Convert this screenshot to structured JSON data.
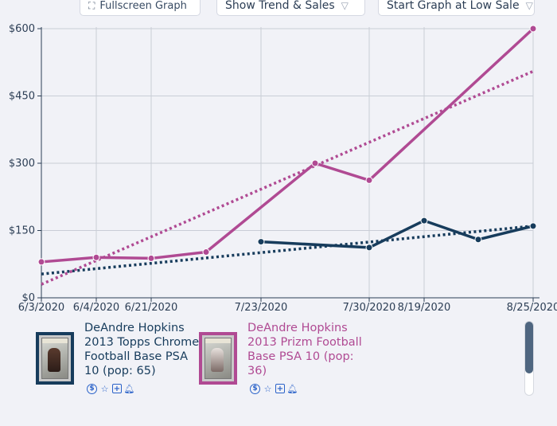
{
  "toolbar": {
    "fullscreen_label": "Fullscreen Graph",
    "trend_label": "Show Trend & Sales",
    "start_label": "Start Graph at Low Sale"
  },
  "colors": {
    "series_1": "#173c5c",
    "series_2": "#b04a93",
    "grid": "#c9cdd6"
  },
  "chart_data": {
    "type": "line",
    "title": "",
    "xlabel": "",
    "ylabel": "",
    "ylim": [
      0,
      600
    ],
    "yticks": [
      0,
      150,
      300,
      450,
      600
    ],
    "ytick_labels": [
      "$0",
      "$150",
      "$300",
      "$450",
      "$600"
    ],
    "categories": [
      "6/3/2020",
      "6/4/2020",
      "6/21/2020",
      "",
      "7/23/2020",
      "",
      "7/30/2020",
      "8/19/2020",
      "",
      "8/25/2020"
    ],
    "x_label_indices": [
      0,
      1,
      2,
      4,
      6,
      7,
      9
    ],
    "series": [
      {
        "name": "DeAndre Hopkins 2013 Topps Chrome Football Base PSA 10 (pop: 65)",
        "color": "#173c5c",
        "points": [
          [
            4,
            125
          ],
          [
            6,
            112
          ],
          [
            7,
            172
          ],
          [
            8,
            130
          ],
          [
            9,
            160
          ]
        ],
        "trend": [
          [
            0,
            53
          ],
          [
            9,
            160
          ]
        ]
      },
      {
        "name": "DeAndre Hopkins 2013 Prizm Football Base PSA 10 (pop: 36)",
        "color": "#b04a93",
        "points": [
          [
            0,
            80
          ],
          [
            1,
            90
          ],
          [
            2,
            88
          ],
          [
            3,
            102
          ],
          [
            5,
            300
          ],
          [
            6,
            262
          ],
          [
            9,
            600
          ]
        ],
        "trend": [
          [
            0,
            30
          ],
          [
            9,
            505
          ]
        ]
      }
    ]
  },
  "legend": [
    {
      "title": "DeAndre Hopkins 2013 Topps Chrome Football Base PSA 10 (pop: 65)",
      "color": "#173c5c"
    },
    {
      "title": "DeAndre Hopkins 2013 Prizm Football Base PSA 10 (pop: 36)",
      "color": "#b04a93"
    }
  ],
  "card_icons": [
    "dollar-icon",
    "star-icon",
    "plus-icon",
    "bell-icon"
  ]
}
